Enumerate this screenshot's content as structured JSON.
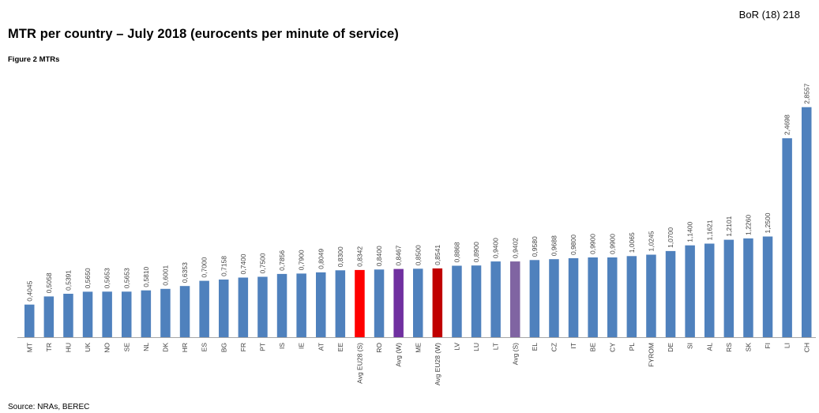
{
  "header": {
    "doc_ref": "BoR (18) 218",
    "title": "MTR per country – July 2018 (eurocents per minute of service)",
    "figure_label": "Figure 2 MTRs",
    "source": "Source: NRAs, BEREC"
  },
  "colors": {
    "default_bar": "#4f81bd",
    "avg_eu28_s": "#ff0000",
    "avg_w": "#7030a0",
    "avg_eu28_w": "#c00000",
    "avg_s": "#8064a2",
    "axis": "#a6a6a6",
    "label_text": "#404040"
  },
  "chart_data": {
    "type": "bar",
    "title": "",
    "xlabel": "",
    "ylabel": "",
    "ylim": [
      0,
      3.0
    ],
    "grid": false,
    "legend": "none",
    "categories": [
      "MT",
      "TR",
      "HU",
      "UK",
      "NO",
      "SE",
      "NL",
      "DK",
      "HR",
      "ES",
      "BG",
      "FR",
      "PT",
      "IS",
      "IE",
      "AT",
      "EE",
      "Avg EU28 (S)",
      "RO",
      "Avg (W)",
      "ME",
      "Avg EU28 (W)",
      "LV",
      "LU",
      "LT",
      "Avg (S)",
      "EL",
      "CZ",
      "IT",
      "BE",
      "CY",
      "PL",
      "FYROM",
      "DE",
      "SI",
      "AL",
      "RS",
      "SK",
      "FI",
      "LI",
      "CH"
    ],
    "values": [
      0.4045,
      0.5058,
      0.5391,
      0.565,
      0.5653,
      0.5653,
      0.581,
      0.6001,
      0.6353,
      0.7,
      0.7158,
      0.74,
      0.75,
      0.7856,
      0.79,
      0.8049,
      0.83,
      0.8342,
      0.84,
      0.8467,
      0.85,
      0.8541,
      0.8868,
      0.89,
      0.94,
      0.9402,
      0.958,
      0.9688,
      0.98,
      0.99,
      0.99,
      1.0065,
      1.0245,
      1.07,
      1.14,
      1.1621,
      1.2101,
      1.226,
      1.25,
      2.4698,
      2.8557
    ],
    "value_labels": [
      "0,4045",
      "0,5058",
      "0,5391",
      "0,5650",
      "0,5653",
      "0,5653",
      "0,5810",
      "0,6001",
      "0,6353",
      "0,7000",
      "0,7158",
      "0,7400",
      "0,7500",
      "0,7856",
      "0,7900",
      "0,8049",
      "0,8300",
      "0,8342",
      "0,8400",
      "0,8467",
      "0,8500",
      "0,8541",
      "0,8868",
      "0,8900",
      "0,9400",
      "0,9402",
      "0,9580",
      "0,9688",
      "0,9800",
      "0,9900",
      "0,9900",
      "1,0065",
      "1,0245",
      "1,0700",
      "1,1400",
      "1,1621",
      "1,2101",
      "1,2260",
      "1,2500",
      "2,4698",
      "2,8557"
    ],
    "highlights": {
      "Avg EU28 (S)": "avg_eu28_s",
      "Avg (W)": "avg_w",
      "Avg EU28 (W)": "avg_eu28_w",
      "Avg (S)": "avg_s"
    }
  }
}
